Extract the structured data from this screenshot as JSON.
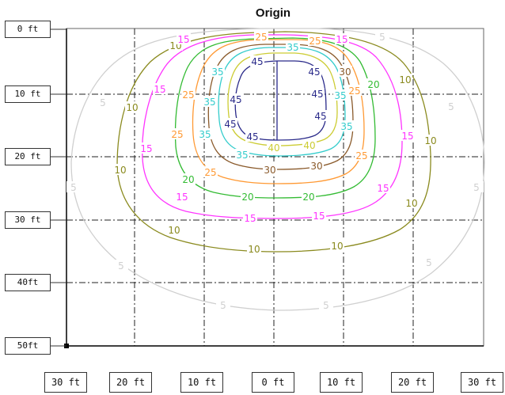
{
  "title": "Origin",
  "y_axis_labels": [
    "0 ft",
    "10 ft",
    "20 ft",
    "30 ft",
    "40ft",
    "50ft"
  ],
  "x_axis_labels": [
    "30 ft",
    "20 ft",
    "10 ft",
    "0 ft",
    "10 ft",
    "20 ft",
    "30 ft"
  ],
  "contour_levels": [
    {
      "level": "5",
      "color": "#cfcfcf"
    },
    {
      "level": "10",
      "color": "#8a8a1e"
    },
    {
      "level": "15",
      "color": "#ff33ff"
    },
    {
      "level": "20",
      "color": "#33bb33"
    },
    {
      "level": "25",
      "color": "#ff9933"
    },
    {
      "level": "30",
      "color": "#8a5a2b"
    },
    {
      "level": "35",
      "color": "#33cccc"
    },
    {
      "level": "40",
      "color": "#cccc33"
    },
    {
      "level": "45",
      "color": "#2a2a8a"
    }
  ]
}
